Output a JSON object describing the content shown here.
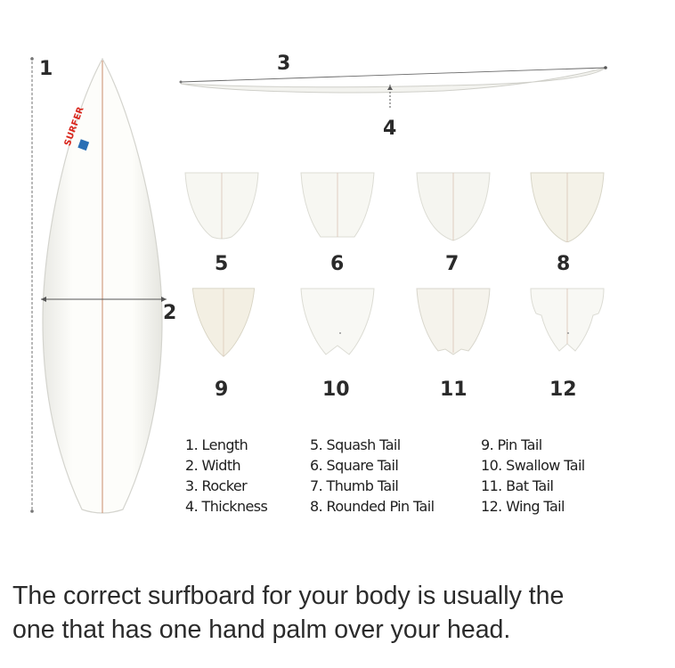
{
  "diagram": {
    "dimension_labels": {
      "length": "1",
      "width": "2",
      "rocker": "3",
      "thickness": "4"
    },
    "board_brand": "SURFER",
    "tails": [
      {
        "number": "5",
        "shape": "squash"
      },
      {
        "number": "6",
        "shape": "square"
      },
      {
        "number": "7",
        "shape": "thumb"
      },
      {
        "number": "8",
        "shape": "rounded-pin"
      },
      {
        "number": "9",
        "shape": "pin"
      },
      {
        "number": "10",
        "shape": "swallow"
      },
      {
        "number": "11",
        "shape": "bat"
      },
      {
        "number": "12",
        "shape": "wing"
      }
    ],
    "legend": {
      "col1": [
        "1. Length",
        "2. Width",
        "3. Rocker",
        "4. Thickness"
      ],
      "col2": [
        "5. Squash Tail",
        "6. Square Tail",
        "7. Thumb Tail",
        "8. Rounded Pin Tail"
      ],
      "col3": [
        "9. Pin Tail",
        "10. Swallow Tail",
        "11. Bat Tail",
        "12. Wing Tail"
      ]
    },
    "colors": {
      "board_fill": "#fbfbf6",
      "board_outline": "#d6d6d0",
      "stringer": "#c98a6a",
      "brand_red": "#d9261c",
      "brand_blue": "#2a6fb5"
    }
  },
  "caption": {
    "line1": "The correct surfboard for your body is usually the",
    "line2": "one that has one hand palm over your head."
  }
}
